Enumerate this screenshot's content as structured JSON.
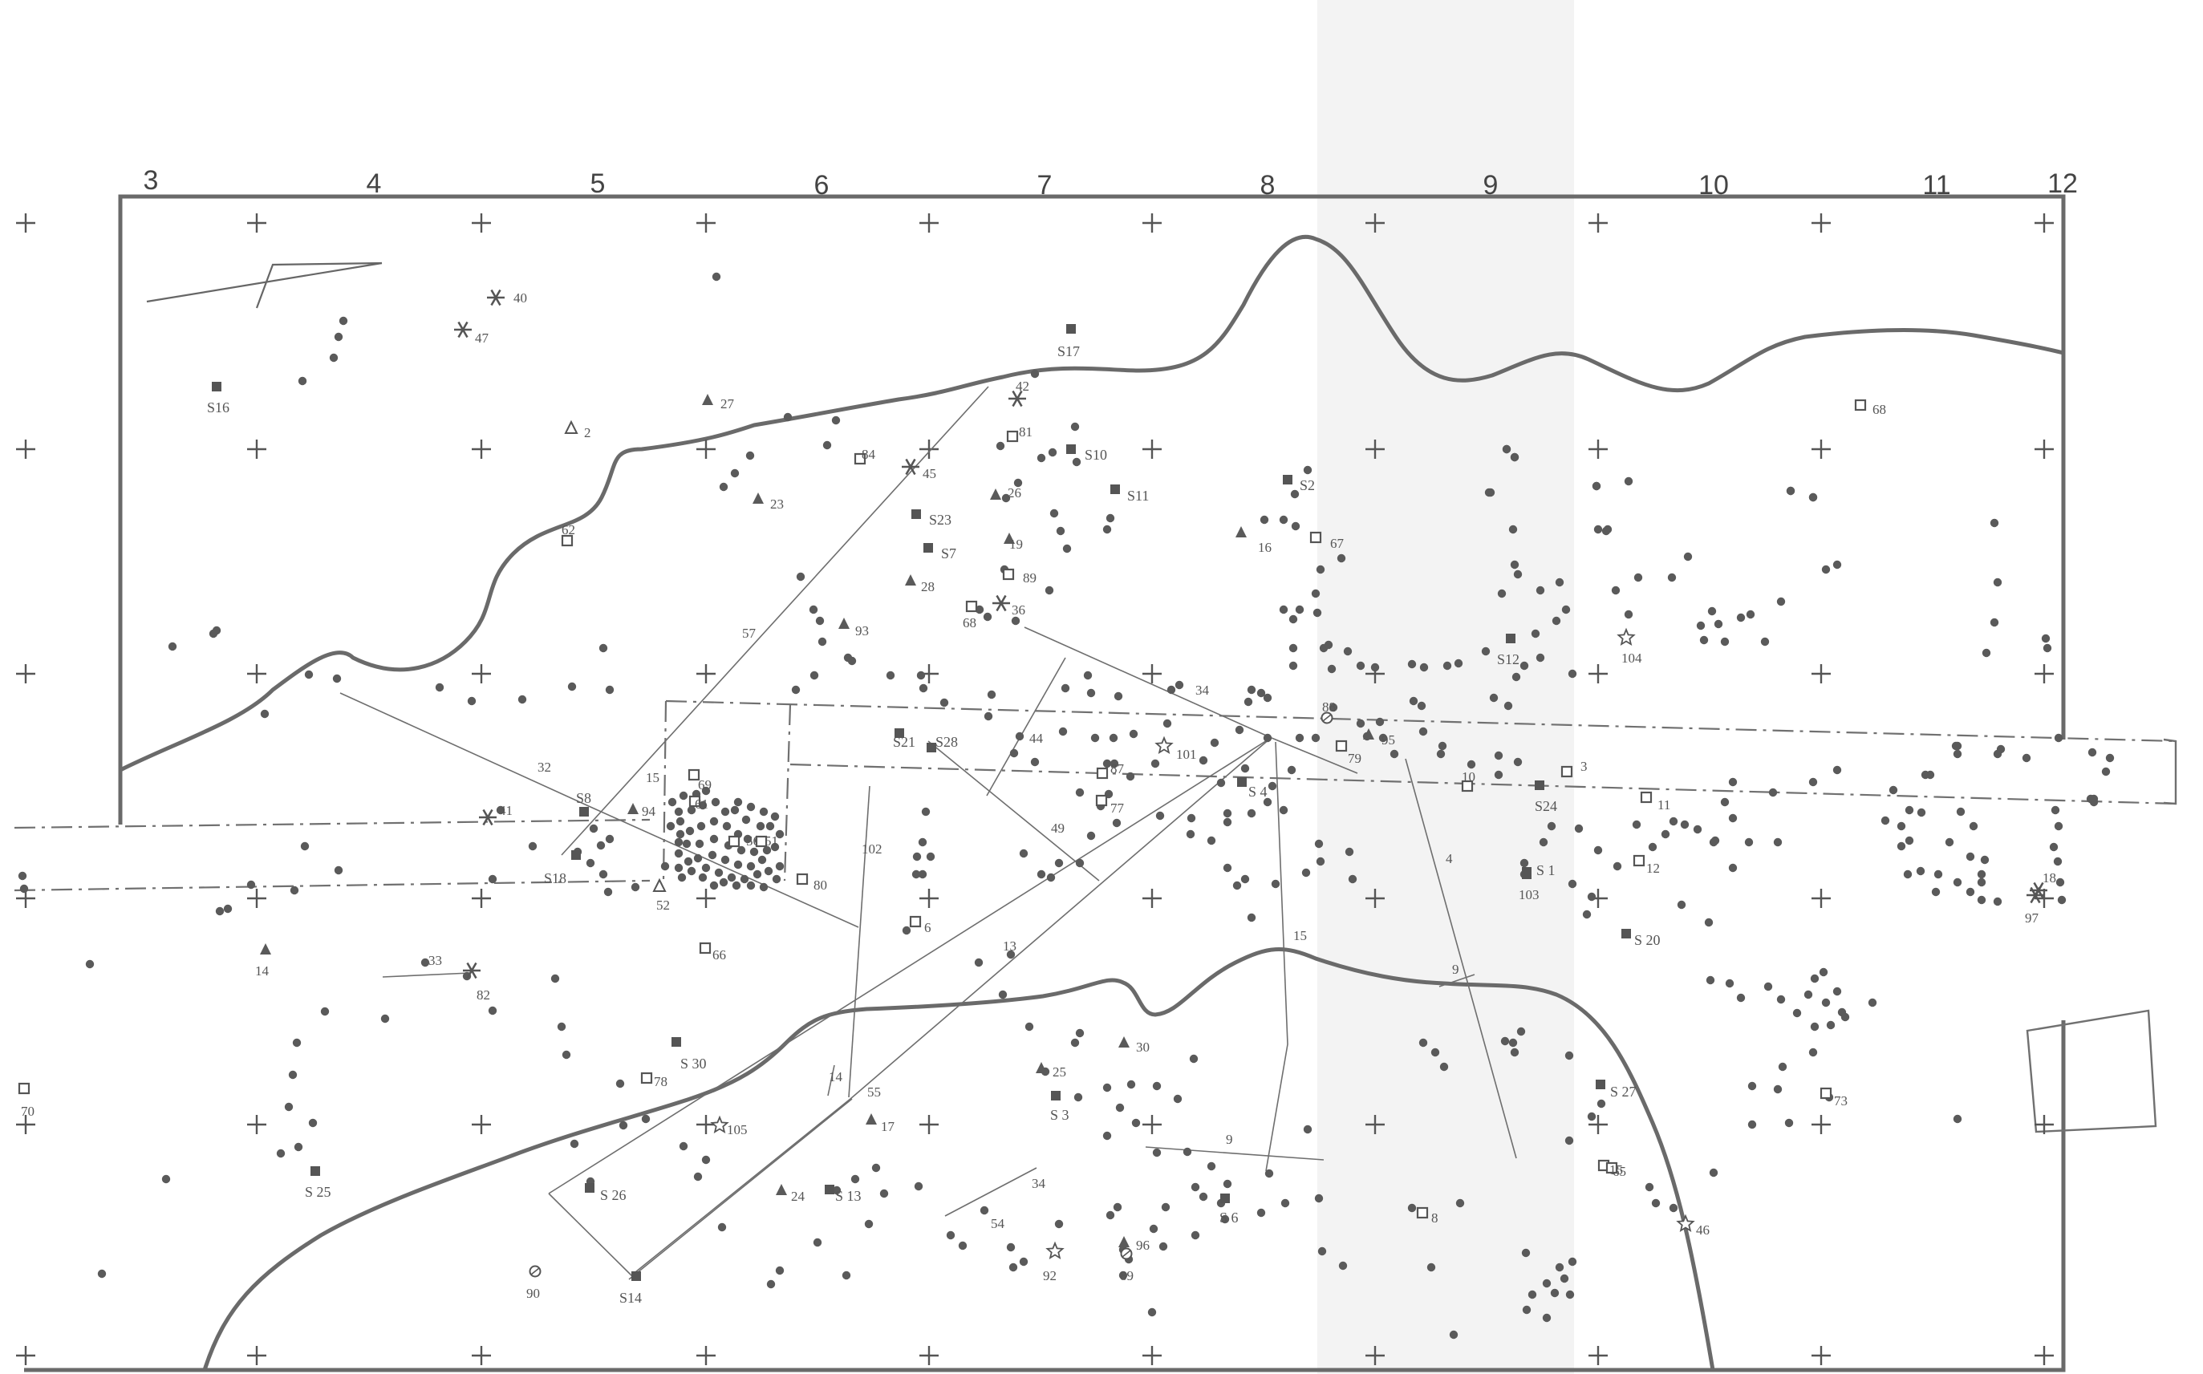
{
  "map": {
    "grid_columns": [
      "3",
      "4",
      "5",
      "6",
      "7",
      "8",
      "9",
      "10",
      "11",
      "12"
    ],
    "colors": {
      "line": "#6a6a6a",
      "dot": "#5a5a5a",
      "background": "#ffffff"
    },
    "features": [
      {
        "label": "S16",
        "symbol": "square"
      },
      {
        "label": "S17",
        "symbol": "square"
      },
      {
        "label": "S10",
        "symbol": "square"
      },
      {
        "label": "S11",
        "symbol": "square"
      },
      {
        "label": "S23",
        "symbol": "square"
      },
      {
        "label": "S7",
        "symbol": "square"
      },
      {
        "label": "S2",
        "symbol": "square"
      },
      {
        "label": "S12",
        "symbol": "square"
      },
      {
        "label": "S21",
        "symbol": "square"
      },
      {
        "label": "S28",
        "symbol": "square"
      },
      {
        "label": "S 4",
        "symbol": "square"
      },
      {
        "label": "S24",
        "symbol": "square"
      },
      {
        "label": "S 1",
        "symbol": "square"
      },
      {
        "label": "S 20",
        "symbol": "square"
      },
      {
        "label": "S8",
        "symbol": "square"
      },
      {
        "label": "S18",
        "symbol": "square"
      },
      {
        "label": "S 30",
        "symbol": "square"
      },
      {
        "label": "S 3",
        "symbol": "square"
      },
      {
        "label": "S 27",
        "symbol": "square"
      },
      {
        "label": "S 25",
        "symbol": "square"
      },
      {
        "label": "S 26",
        "symbol": "square"
      },
      {
        "label": "S 13",
        "symbol": "square"
      },
      {
        "label": "S 6",
        "symbol": "square"
      },
      {
        "label": "S14",
        "symbol": "square"
      },
      {
        "label": "40",
        "symbol": "star"
      },
      {
        "label": "47",
        "symbol": "star"
      },
      {
        "label": "42",
        "symbol": "star"
      },
      {
        "label": "45",
        "symbol": "star"
      },
      {
        "label": "36",
        "symbol": "star"
      },
      {
        "label": "41",
        "symbol": "star"
      },
      {
        "label": "82",
        "symbol": "star"
      },
      {
        "label": "2",
        "symbol": "open-triangle"
      },
      {
        "label": "52",
        "symbol": "open-triangle"
      },
      {
        "label": "27",
        "symbol": "triangle"
      },
      {
        "label": "23",
        "symbol": "triangle"
      },
      {
        "label": "26",
        "symbol": "triangle"
      },
      {
        "label": "19",
        "symbol": "triangle"
      },
      {
        "label": "28",
        "symbol": "triangle"
      },
      {
        "label": "93",
        "symbol": "triangle"
      },
      {
        "label": "16",
        "symbol": "triangle"
      },
      {
        "label": "95",
        "symbol": "triangle"
      },
      {
        "label": "94",
        "symbol": "triangle"
      },
      {
        "label": "14",
        "symbol": "triangle"
      },
      {
        "label": "30",
        "symbol": "triangle"
      },
      {
        "label": "25",
        "symbol": "triangle"
      },
      {
        "label": "17",
        "symbol": "triangle"
      },
      {
        "label": "24",
        "symbol": "triangle"
      },
      {
        "label": "96",
        "symbol": "triangle"
      },
      {
        "label": "62",
        "symbol": "open-square"
      },
      {
        "label": "84",
        "symbol": "open-square"
      },
      {
        "label": "81",
        "symbol": "open-square"
      },
      {
        "label": "89",
        "symbol": "open-square"
      },
      {
        "label": "68",
        "symbol": "open-square"
      },
      {
        "label": "67",
        "symbol": "open-square"
      },
      {
        "label": "68",
        "symbol": "open-square"
      },
      {
        "label": "79",
        "symbol": "open-square"
      },
      {
        "label": "10",
        "symbol": "open-square"
      },
      {
        "label": "3",
        "symbol": "open-square"
      },
      {
        "label": "11",
        "symbol": "open-square"
      },
      {
        "label": "12",
        "symbol": "open-square"
      },
      {
        "label": "87",
        "symbol": "open-square"
      },
      {
        "label": "77",
        "symbol": "open-square"
      },
      {
        "label": "69",
        "symbol": "open-square"
      },
      {
        "label": "61",
        "symbol": "open-square"
      },
      {
        "label": "56",
        "symbol": "open-square"
      },
      {
        "label": "51",
        "symbol": "open-square"
      },
      {
        "label": "80",
        "symbol": "open-square"
      },
      {
        "label": "6",
        "symbol": "open-square"
      },
      {
        "label": "66",
        "symbol": "open-square"
      },
      {
        "label": "78",
        "symbol": "open-square"
      },
      {
        "label": "70",
        "symbol": "open-square"
      },
      {
        "label": "73",
        "symbol": "open-square"
      },
      {
        "label": "65",
        "symbol": "open-square"
      },
      {
        "label": "8",
        "symbol": "open-square"
      },
      {
        "label": "15",
        "symbol": "open-square"
      },
      {
        "label": "101",
        "symbol": "open-star"
      },
      {
        "label": "104",
        "symbol": "open-star"
      },
      {
        "label": "105",
        "symbol": "open-star"
      },
      {
        "label": "92",
        "symbol": "open-star"
      },
      {
        "label": "46",
        "symbol": "open-star"
      },
      {
        "label": "88",
        "symbol": "open-circle"
      },
      {
        "label": "90",
        "symbol": "open-circle"
      },
      {
        "label": "89",
        "symbol": "open-circle"
      },
      {
        "label": "103",
        "symbol": "square"
      },
      {
        "label": "18",
        "symbol": "star"
      },
      {
        "label": "97",
        "symbol": "star"
      }
    ],
    "joins": [
      {
        "label": "57"
      },
      {
        "label": "32"
      },
      {
        "label": "34"
      },
      {
        "label": "44"
      },
      {
        "label": "49"
      },
      {
        "label": "102"
      },
      {
        "label": "13"
      },
      {
        "label": "15"
      },
      {
        "label": "4"
      },
      {
        "label": "9"
      },
      {
        "label": "9"
      },
      {
        "label": "33"
      },
      {
        "label": "14"
      },
      {
        "label": "55"
      },
      {
        "label": "34"
      },
      {
        "label": "54"
      },
      {
        "label": "15"
      }
    ]
  }
}
